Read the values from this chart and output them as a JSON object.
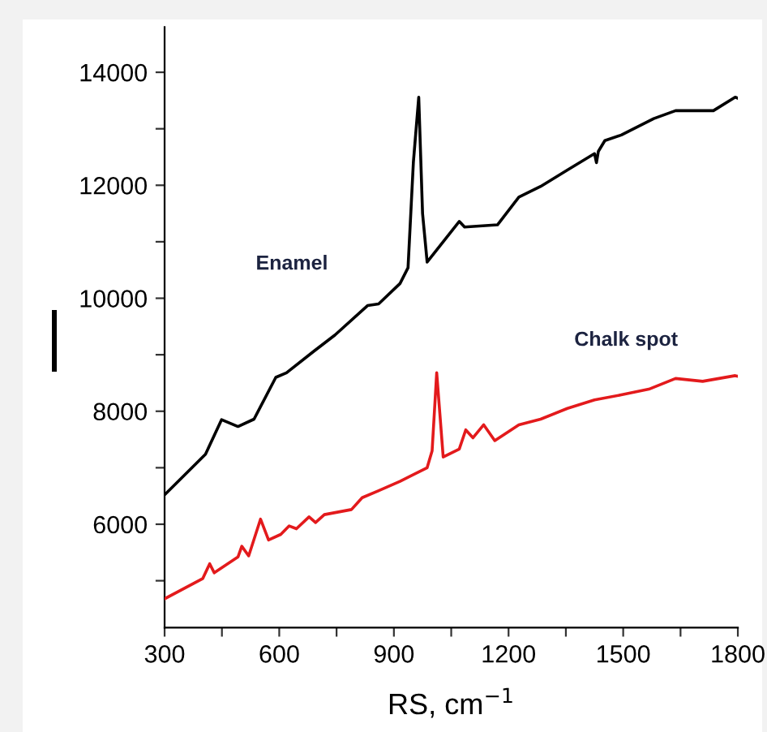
{
  "chart_data": {
    "type": "line",
    "xlabel": "RS, cm$^{−1}$",
    "xlim": [
      300,
      1800
    ],
    "ylim": [
      4170,
      14800
    ],
    "xticks": [
      300,
      {
        "value": 450,
        "label": null
      },
      600,
      {
        "value": 750,
        "label": null
      },
      900,
      {
        "value": 1050,
        "label": null
      },
      1200,
      {
        "value": 1350,
        "label": null
      },
      1500,
      {
        "value": 1650,
        "label": null
      },
      1800
    ],
    "yticks": [
      {
        "value": 5000,
        "label": null
      },
      6000,
      {
        "value": 7000,
        "label": null
      },
      8000,
      {
        "value": 9000,
        "label": null
      },
      10000,
      {
        "value": 11000,
        "label": null
      },
      12000,
      {
        "value": 13000,
        "label": null
      },
      14000
    ],
    "grid": false,
    "legend": false,
    "marker": "none",
    "line_style": "solid",
    "series": [
      {
        "name": "Enamel",
        "color": "#000000",
        "x": [
          300,
          407,
          449,
          492,
          534,
          591,
          619,
          690,
          746,
          831,
          860,
          916,
          937,
          951,
          965,
          975,
          987,
          1071,
          1085,
          1171,
          1227,
          1284,
          1354,
          1425,
          1430,
          1435,
          1452,
          1495,
          1580,
          1637,
          1736,
          1793,
          1800
        ],
        "values": [
          6520,
          7240,
          7850,
          7730,
          7860,
          8600,
          8680,
          9060,
          9350,
          9870,
          9900,
          10260,
          10540,
          12410,
          13560,
          11500,
          10640,
          11360,
          11260,
          11300,
          11790,
          11980,
          12270,
          12560,
          12400,
          12600,
          12790,
          12890,
          13180,
          13320,
          13320,
          13560,
          13540
        ]
      },
      {
        "name": "Chalk spot",
        "color": "#e31a1c",
        "x": [
          300,
          400,
          418,
          430,
          492,
          502,
          520,
          551,
          572,
          604,
          626,
          645,
          678,
          695,
          718,
          789,
          817,
          859,
          916,
          987,
          1000,
          1012,
          1029,
          1071,
          1088,
          1107,
          1135,
          1164,
          1227,
          1284,
          1354,
          1425,
          1495,
          1567,
          1637,
          1708,
          1793,
          1800
        ],
        "values": [
          4680,
          5040,
          5300,
          5140,
          5420,
          5610,
          5440,
          6090,
          5720,
          5820,
          5970,
          5920,
          6130,
          6030,
          6170,
          6260,
          6470,
          6590,
          6760,
          7000,
          7300,
          8680,
          7190,
          7330,
          7670,
          7530,
          7760,
          7480,
          7760,
          7860,
          8050,
          8200,
          8290,
          8390,
          8580,
          8530,
          8630,
          8620
        ]
      }
    ]
  }
}
